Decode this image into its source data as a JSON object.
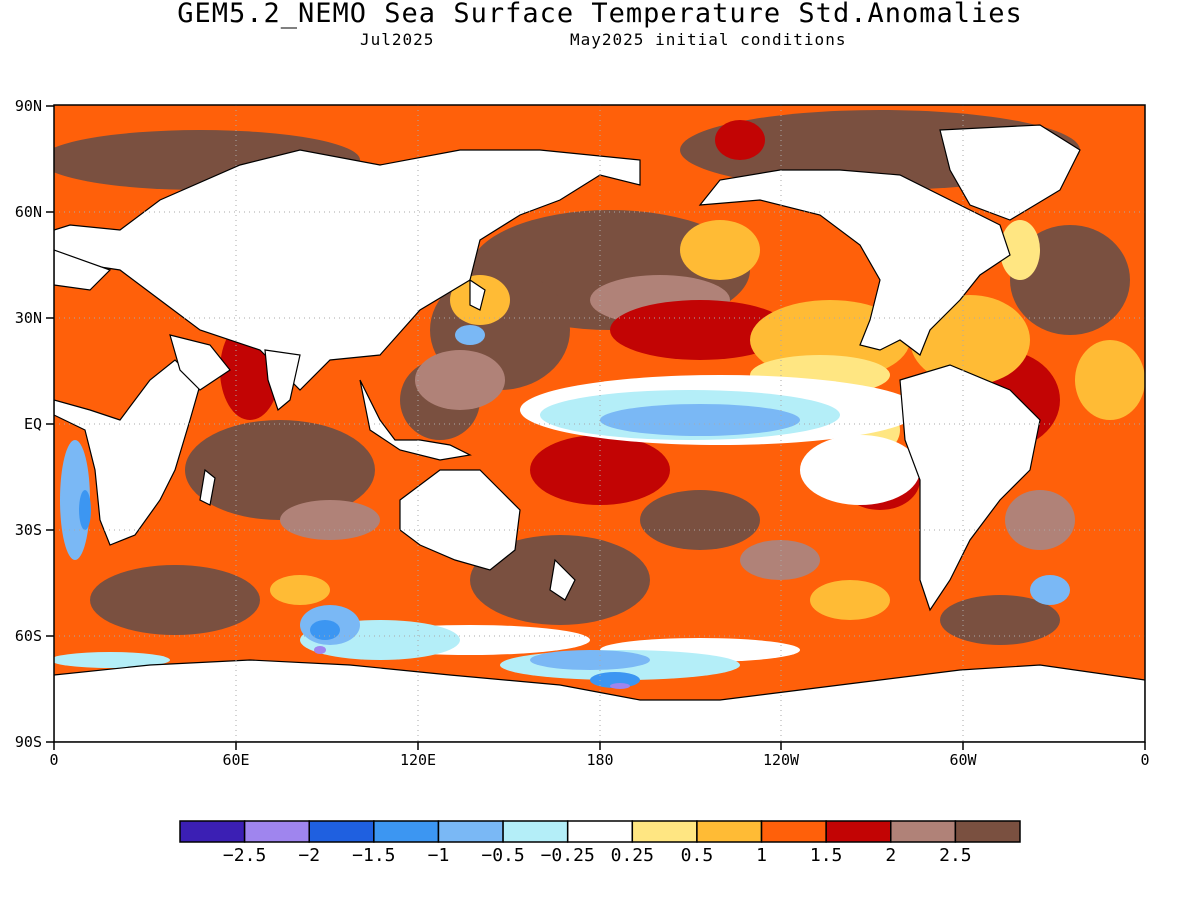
{
  "title": "GEM5.2_NEMO Sea Surface Temperature Std.Anomalies",
  "subtitle_left": "Jul2025",
  "subtitle_right": "May2025 initial conditions",
  "lat_labels": [
    "90N",
    "60N",
    "30N",
    "EQ",
    "30S",
    "60S",
    "90S"
  ],
  "lon_labels": [
    "0",
    "60E",
    "120E",
    "180",
    "120W",
    "60W",
    "0"
  ],
  "colorbar": {
    "colors": [
      "#3b1fb4",
      "#9f85ee",
      "#1f60e0",
      "#3c96f2",
      "#7ab8f5",
      "#b4eef8",
      "#ffffff",
      "#ffe682",
      "#ffbb35",
      "#ff600a",
      "#c20404",
      "#b08278",
      "#7a5040"
    ],
    "labels": [
      "−2.5",
      "−2",
      "−1.5",
      "−1",
      "−0.5",
      "−0.25",
      "0.25",
      "0.5",
      "1",
      "1.5",
      "2",
      "2.5"
    ]
  },
  "legend_colors": {
    "land": "#ffffff",
    "coast": "#000000",
    "grid": "#aaaaaa"
  }
}
